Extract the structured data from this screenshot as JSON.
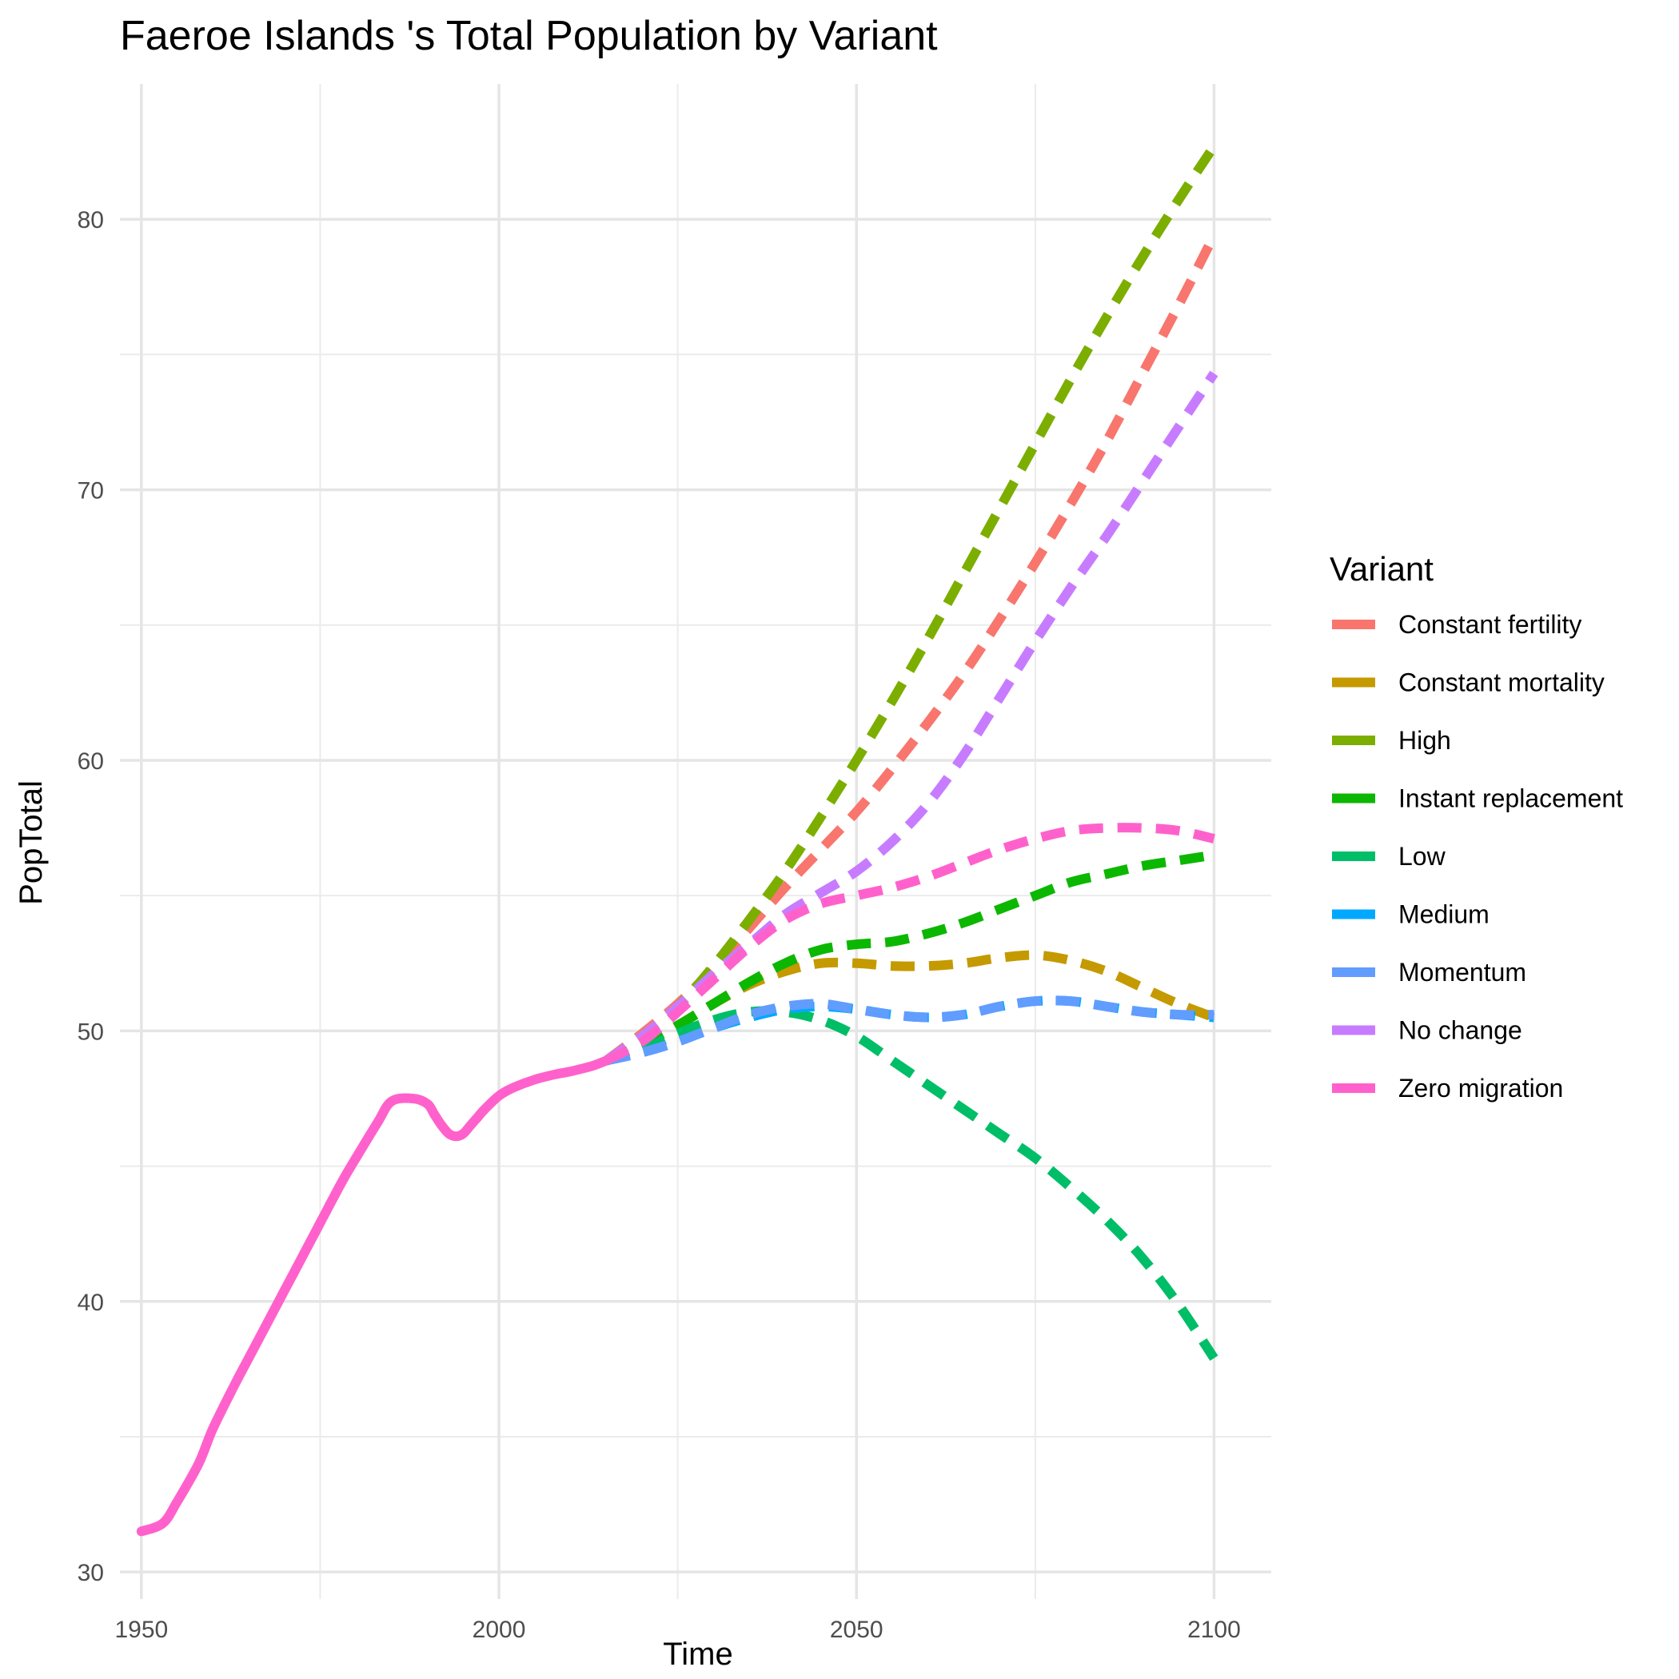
{
  "chart_data": {
    "type": "line",
    "title": "Faeroe Islands 's Total Population by Variant",
    "xlabel": "Time",
    "ylabel": "PopTotal",
    "xlim": [
      1947,
      2108
    ],
    "ylim": [
      29,
      85
    ],
    "x_ticks": [
      1950,
      2000,
      2050,
      2100
    ],
    "y_ticks": [
      30,
      40,
      50,
      60,
      70,
      80
    ],
    "grid": true,
    "legend": {
      "title": "Variant",
      "position": "right"
    },
    "history": {
      "name": "Zero migration",
      "x": [
        1950,
        1953,
        1955,
        1958,
        1960,
        1963,
        1965,
        1968,
        1970,
        1973,
        1975,
        1978,
        1980,
        1983,
        1985,
        1988,
        1990,
        1991,
        1992,
        1993,
        1994,
        1995,
        1996,
        1997,
        1998,
        2000,
        2002,
        2005,
        2008,
        2010,
        2013,
        2015
      ],
      "y": [
        31.5,
        31.8,
        32.6,
        34.0,
        35.3,
        36.9,
        37.9,
        39.4,
        40.4,
        41.9,
        42.9,
        44.4,
        45.3,
        46.6,
        47.4,
        47.5,
        47.3,
        46.9,
        46.5,
        46.2,
        46.1,
        46.2,
        46.5,
        46.8,
        47.1,
        47.6,
        47.9,
        48.2,
        48.4,
        48.5,
        48.7,
        48.9
      ]
    },
    "series": [
      {
        "name": "Constant fertility",
        "color": "#F8766D",
        "x": [
          2015,
          2020,
          2025,
          2030,
          2035,
          2040,
          2045,
          2050,
          2055,
          2060,
          2065,
          2070,
          2075,
          2080,
          2085,
          2090,
          2095,
          2100
        ],
        "y": [
          48.9,
          49.9,
          51.0,
          52.3,
          53.8,
          55.3,
          56.7,
          58.1,
          59.7,
          61.4,
          63.2,
          65.2,
          67.3,
          69.5,
          71.8,
          74.3,
          76.8,
          79.4
        ]
      },
      {
        "name": "Constant mortality",
        "color": "#C49A00",
        "x": [
          2015,
          2020,
          2025,
          2030,
          2035,
          2040,
          2045,
          2050,
          2055,
          2060,
          2065,
          2070,
          2075,
          2080,
          2085,
          2090,
          2095,
          2100
        ],
        "y": [
          48.9,
          49.5,
          50.2,
          51.0,
          51.7,
          52.2,
          52.5,
          52.5,
          52.4,
          52.4,
          52.5,
          52.7,
          52.8,
          52.6,
          52.2,
          51.6,
          51.0,
          50.5
        ]
      },
      {
        "name": "High",
        "color": "#7CAE00",
        "x": [
          2015,
          2020,
          2025,
          2030,
          2035,
          2040,
          2045,
          2050,
          2055,
          2060,
          2065,
          2070,
          2075,
          2080,
          2085,
          2090,
          2095,
          2100
        ],
        "y": [
          48.9,
          49.8,
          50.9,
          52.4,
          54.1,
          55.9,
          57.9,
          60.0,
          62.2,
          64.5,
          66.9,
          69.3,
          71.7,
          74.1,
          76.4,
          78.6,
          80.7,
          82.7
        ]
      },
      {
        "name": "Instant replacement",
        "color": "#0CB702",
        "x": [
          2015,
          2020,
          2025,
          2030,
          2035,
          2040,
          2045,
          2050,
          2055,
          2060,
          2065,
          2070,
          2075,
          2080,
          2085,
          2090,
          2095,
          2100
        ],
        "y": [
          48.9,
          49.5,
          50.2,
          51.0,
          51.8,
          52.5,
          53.0,
          53.2,
          53.3,
          53.6,
          54.0,
          54.5,
          55.0,
          55.5,
          55.8,
          56.1,
          56.3,
          56.5
        ]
      },
      {
        "name": "Low",
        "color": "#00BE67",
        "x": [
          2015,
          2020,
          2025,
          2030,
          2035,
          2040,
          2045,
          2050,
          2055,
          2060,
          2065,
          2070,
          2075,
          2080,
          2085,
          2090,
          2095,
          2100
        ],
        "y": [
          48.9,
          49.3,
          49.9,
          50.4,
          50.7,
          50.7,
          50.4,
          49.8,
          48.9,
          48.0,
          47.1,
          46.2,
          45.3,
          44.2,
          43.0,
          41.6,
          39.9,
          37.9
        ]
      },
      {
        "name": "Medium",
        "color": "#00A9FF",
        "x": [
          2015,
          2020,
          2025,
          2030,
          2035,
          2040,
          2045,
          2050,
          2055,
          2060,
          2065,
          2070,
          2075,
          2080,
          2085,
          2090,
          2095,
          2100
        ],
        "y": [
          48.9,
          49.2,
          49.6,
          50.1,
          50.5,
          50.8,
          50.9,
          50.8,
          50.6,
          50.5,
          50.6,
          50.9,
          51.1,
          51.1,
          50.9,
          50.7,
          50.6,
          50.5
        ]
      },
      {
        "name": "Momentum",
        "color": "#619CFF",
        "x": [
          2015,
          2020,
          2025,
          2030,
          2035,
          2040,
          2045,
          2050,
          2055,
          2060,
          2065,
          2070,
          2075,
          2080,
          2085,
          2090,
          2095,
          2100
        ],
        "y": [
          48.9,
          49.2,
          49.6,
          50.1,
          50.6,
          50.9,
          51.0,
          50.8,
          50.6,
          50.5,
          50.6,
          50.9,
          51.1,
          51.1,
          50.9,
          50.7,
          50.6,
          50.6
        ]
      },
      {
        "name": "No change",
        "color": "#C77CFF",
        "x": [
          2015,
          2020,
          2025,
          2030,
          2035,
          2040,
          2045,
          2050,
          2055,
          2060,
          2065,
          2070,
          2075,
          2080,
          2085,
          2090,
          2095,
          2100
        ],
        "y": [
          48.9,
          49.8,
          50.9,
          52.1,
          53.2,
          54.3,
          55.1,
          55.9,
          57.0,
          58.4,
          60.2,
          62.3,
          64.4,
          66.4,
          68.3,
          70.3,
          72.3,
          74.3
        ]
      },
      {
        "name": "Zero migration",
        "color": "#FF61CC",
        "x": [
          2015,
          2020,
          2025,
          2030,
          2035,
          2040,
          2045,
          2050,
          2055,
          2060,
          2065,
          2070,
          2075,
          2080,
          2085,
          2090,
          2095,
          2100
        ],
        "y": [
          48.9,
          49.6,
          50.7,
          51.9,
          53.1,
          54.1,
          54.7,
          55.0,
          55.3,
          55.7,
          56.2,
          56.7,
          57.1,
          57.4,
          57.5,
          57.5,
          57.4,
          57.1
        ]
      }
    ]
  }
}
